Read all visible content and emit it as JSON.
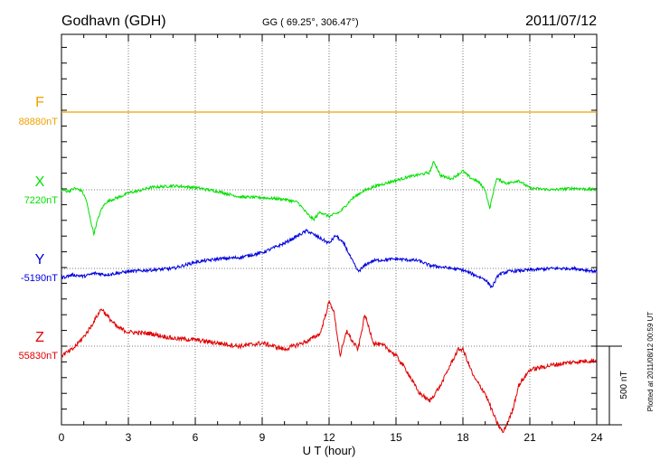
{
  "header": {
    "station": "Godhavn (GDH)",
    "coords": "GG ( 69.25°, 306.47°)",
    "date": "2011/07/12"
  },
  "footer": {
    "plotted": "Plotted at 2011/08/12 00:59 UT"
  },
  "chart_data": {
    "type": "line",
    "xlabel": "U T (hour)",
    "x_ticks": [
      0,
      3,
      6,
      9,
      12,
      15,
      18,
      21,
      24
    ],
    "xlim": [
      0,
      24
    ],
    "grid": true,
    "scale_bar": {
      "label": "500 nT",
      "value_nT": 500
    },
    "series": [
      {
        "name": "F",
        "baseline_label": "88880nT",
        "color": "#f0a000",
        "points": [
          [
            0,
            0
          ],
          [
            24,
            0
          ]
        ]
      },
      {
        "name": "X",
        "baseline_label": "7220nT",
        "color": "#00e000",
        "points": [
          [
            0,
            0
          ],
          [
            0.3,
            -10
          ],
          [
            0.6,
            10
          ],
          [
            0.9,
            -5
          ],
          [
            1.1,
            -60
          ],
          [
            1.3,
            -190
          ],
          [
            1.45,
            -280
          ],
          [
            1.6,
            -200
          ],
          [
            1.8,
            -120
          ],
          [
            2.0,
            -80
          ],
          [
            2.3,
            -60
          ],
          [
            2.7,
            -40
          ],
          [
            3.0,
            -20
          ],
          [
            3.5,
            -5
          ],
          [
            4.0,
            15
          ],
          [
            5.0,
            25
          ],
          [
            6.0,
            15
          ],
          [
            7.0,
            -10
          ],
          [
            8.0,
            -45
          ],
          [
            9.0,
            -50
          ],
          [
            10.0,
            -60
          ],
          [
            10.6,
            -80
          ],
          [
            11.0,
            -150
          ],
          [
            11.3,
            -190
          ],
          [
            11.6,
            -140
          ],
          [
            12.0,
            -170
          ],
          [
            12.5,
            -140
          ],
          [
            13.0,
            -60
          ],
          [
            13.5,
            -10
          ],
          [
            14.0,
            20
          ],
          [
            14.5,
            40
          ],
          [
            15.0,
            60
          ],
          [
            15.5,
            80
          ],
          [
            16.0,
            95
          ],
          [
            16.5,
            110
          ],
          [
            16.7,
            180
          ],
          [
            17.0,
            90
          ],
          [
            17.5,
            70
          ],
          [
            18.0,
            120
          ],
          [
            18.3,
            80
          ],
          [
            18.7,
            50
          ],
          [
            19.0,
            0
          ],
          [
            19.2,
            -120
          ],
          [
            19.5,
            70
          ],
          [
            20.0,
            40
          ],
          [
            20.5,
            60
          ],
          [
            21.0,
            10
          ],
          [
            22.0,
            0
          ],
          [
            23.0,
            10
          ],
          [
            24.0,
            0
          ]
        ]
      },
      {
        "name": "Y",
        "baseline_label": "-5190nT",
        "color": "#0000e0",
        "points": [
          [
            0,
            -60
          ],
          [
            0.5,
            -40
          ],
          [
            1.0,
            -50
          ],
          [
            1.5,
            -30
          ],
          [
            2.0,
            -40
          ],
          [
            2.5,
            -30
          ],
          [
            3.0,
            -20
          ],
          [
            4.0,
            -10
          ],
          [
            5.0,
            0
          ],
          [
            6.0,
            40
          ],
          [
            7.0,
            60
          ],
          [
            8.0,
            70
          ],
          [
            9.0,
            100
          ],
          [
            10.0,
            160
          ],
          [
            10.5,
            200
          ],
          [
            11.0,
            240
          ],
          [
            11.5,
            200
          ],
          [
            12.0,
            160
          ],
          [
            12.3,
            210
          ],
          [
            12.7,
            150
          ],
          [
            13.0,
            60
          ],
          [
            13.3,
            -20
          ],
          [
            13.7,
            30
          ],
          [
            14.0,
            50
          ],
          [
            15.0,
            60
          ],
          [
            16.0,
            50
          ],
          [
            16.5,
            20
          ],
          [
            17.0,
            10
          ],
          [
            18.0,
            -10
          ],
          [
            18.5,
            -40
          ],
          [
            19.0,
            -70
          ],
          [
            19.3,
            -120
          ],
          [
            19.6,
            -40
          ],
          [
            20.0,
            -20
          ],
          [
            21.0,
            -10
          ],
          [
            22.0,
            0
          ],
          [
            23.0,
            0
          ],
          [
            24.0,
            -20
          ]
        ]
      },
      {
        "name": "Z",
        "baseline_label": "55830nT",
        "color": "#e00000",
        "points": [
          [
            0,
            -60
          ],
          [
            0.5,
            -20
          ],
          [
            1.0,
            60
          ],
          [
            1.3,
            120
          ],
          [
            1.5,
            170
          ],
          [
            1.8,
            240
          ],
          [
            2.0,
            200
          ],
          [
            2.5,
            120
          ],
          [
            3.0,
            90
          ],
          [
            4.0,
            80
          ],
          [
            5.0,
            50
          ],
          [
            6.0,
            40
          ],
          [
            7.0,
            20
          ],
          [
            8.0,
            0
          ],
          [
            9.0,
            20
          ],
          [
            10.0,
            -20
          ],
          [
            11.0,
            30
          ],
          [
            11.6,
            80
          ],
          [
            12.0,
            280
          ],
          [
            12.2,
            230
          ],
          [
            12.5,
            -60
          ],
          [
            12.8,
            100
          ],
          [
            13.0,
            40
          ],
          [
            13.3,
            -20
          ],
          [
            13.6,
            200
          ],
          [
            14.0,
            20
          ],
          [
            14.5,
            0
          ],
          [
            15.0,
            -60
          ],
          [
            15.5,
            -160
          ],
          [
            16.0,
            -290
          ],
          [
            16.5,
            -350
          ],
          [
            17.0,
            -250
          ],
          [
            17.5,
            -100
          ],
          [
            17.8,
            -20
          ],
          [
            18.0,
            -20
          ],
          [
            18.5,
            -200
          ],
          [
            19.0,
            -300
          ],
          [
            19.5,
            -480
          ],
          [
            19.8,
            -550
          ],
          [
            20.2,
            -420
          ],
          [
            20.5,
            -250
          ],
          [
            21.0,
            -150
          ],
          [
            22.0,
            -120
          ],
          [
            23.0,
            -100
          ],
          [
            24.0,
            -90
          ]
        ]
      }
    ]
  }
}
